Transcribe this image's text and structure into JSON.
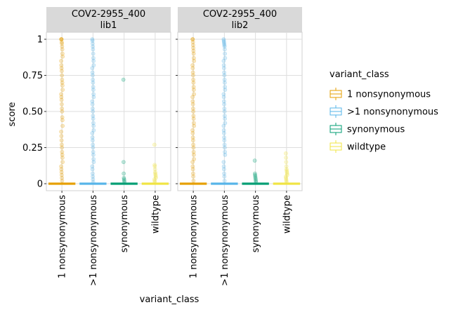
{
  "chart_data": {
    "type": "box+jitter (faceted)",
    "facets": [
      {
        "strip_line1": "COV2-2955_400",
        "strip_line2": "lib1"
      },
      {
        "strip_line1": "COV2-2955_400",
        "strip_line2": "lib2"
      }
    ],
    "categories": [
      "1 nonsynonymous",
      ">1 nonsynonymous",
      "synonymous",
      "wildtype"
    ],
    "xlabel": "variant_class",
    "ylabel": "score",
    "ylim": [
      0,
      1
    ],
    "yticks": [
      0,
      0.25,
      0.5,
      0.75,
      1
    ],
    "ytick_labels": [
      "0",
      "0.25",
      "0.50",
      "0.75",
      "1"
    ],
    "legend": {
      "title": "variant_class",
      "placement": "right",
      "entries": [
        {
          "label": "1 nonsynonymous",
          "color": "#E69F00"
        },
        {
          "label": ">1 nonsynonymous",
          "color": "#56B4E9"
        },
        {
          "label": "synonymous",
          "color": "#009E73"
        },
        {
          "label": "wildtype",
          "color": "#F0E442"
        }
      ]
    },
    "panels": [
      {
        "facet": "lib1",
        "groups": [
          {
            "category": "1 nonsynonymous",
            "median": 0,
            "q1": 0,
            "q3": 0,
            "points": [
              1,
              1,
              1,
              0.98,
              0.97,
              0.95,
              0.93,
              0.9,
              0.88,
              0.85,
              0.82,
              0.8,
              0.78,
              0.75,
              0.72,
              0.7,
              0.68,
              0.65,
              0.62,
              0.6,
              0.58,
              0.55,
              0.52,
              0.5,
              0.46,
              0.44,
              0.4,
              0.36,
              0.33,
              0.3,
              0.27,
              0.25,
              0.22,
              0.2,
              0.18,
              0.15,
              0.12,
              0.1,
              0.08,
              0.06,
              0.04,
              0.02
            ]
          },
          {
            "category": ">1 nonsynonymous",
            "median": 0,
            "q1": 0,
            "q3": 0,
            "points": [
              1,
              0.99,
              0.97,
              0.95,
              0.93,
              0.9,
              0.87,
              0.85,
              0.82,
              0.8,
              0.77,
              0.75,
              0.72,
              0.7,
              0.67,
              0.65,
              0.62,
              0.6,
              0.57,
              0.55,
              0.52,
              0.5,
              0.47,
              0.45,
              0.42,
              0.4,
              0.37,
              0.35,
              0.32,
              0.3,
              0.27,
              0.25,
              0.22,
              0.2,
              0.17,
              0.15,
              0.12,
              0.1,
              0.07,
              0.05,
              0.03,
              0.01
            ]
          },
          {
            "category": "synonymous",
            "median": 0,
            "q1": 0,
            "q3": 0,
            "points": [
              0.72,
              0.15,
              0.07,
              0.04,
              0.03,
              0.02,
              0.01
            ]
          },
          {
            "category": "wildtype",
            "median": 0,
            "q1": 0,
            "q3": 0,
            "points": [
              0.27,
              0.13,
              0.12,
              0.1,
              0.08,
              0.07,
              0.06,
              0.05,
              0.04,
              0.03,
              0.02,
              0.01
            ]
          }
        ]
      },
      {
        "facet": "lib2",
        "groups": [
          {
            "category": "1 nonsynonymous",
            "median": 0,
            "q1": 0,
            "q3": 0,
            "points": [
              1,
              1,
              0.98,
              0.96,
              0.94,
              0.92,
              0.9,
              0.87,
              0.85,
              0.82,
              0.8,
              0.77,
              0.75,
              0.72,
              0.7,
              0.67,
              0.65,
              0.62,
              0.6,
              0.57,
              0.55,
              0.52,
              0.5,
              0.47,
              0.45,
              0.42,
              0.4,
              0.37,
              0.35,
              0.32,
              0.3,
              0.27,
              0.25,
              0.22,
              0.2,
              0.17,
              0.15,
              0.12,
              0.1,
              0.07,
              0.05,
              0.02
            ]
          },
          {
            "category": ">1 nonsynonymous",
            "median": 0,
            "q1": 0,
            "q3": 0,
            "points": [
              1,
              0.99,
              0.98,
              0.97,
              0.96,
              0.95,
              0.93,
              0.9,
              0.87,
              0.85,
              0.82,
              0.8,
              0.77,
              0.75,
              0.72,
              0.7,
              0.67,
              0.65,
              0.62,
              0.6,
              0.57,
              0.55,
              0.52,
              0.5,
              0.47,
              0.45,
              0.42,
              0.4,
              0.37,
              0.35,
              0.32,
              0.3,
              0.27,
              0.25,
              0.22,
              0.2,
              0.15,
              0.12,
              0.1,
              0.07,
              0.05,
              0.02
            ]
          },
          {
            "category": "synonymous",
            "median": 0,
            "q1": 0,
            "q3": 0,
            "points": [
              0.16,
              0.07,
              0.06,
              0.05,
              0.04,
              0.03,
              0.02,
              0.01
            ]
          },
          {
            "category": "wildtype",
            "median": 0,
            "q1": 0,
            "q3": 0,
            "points": [
              0.21,
              0.18,
              0.15,
              0.12,
              0.1,
              0.09,
              0.08,
              0.07,
              0.06,
              0.05,
              0.04,
              0.03,
              0.02,
              0.01
            ]
          }
        ]
      }
    ]
  }
}
